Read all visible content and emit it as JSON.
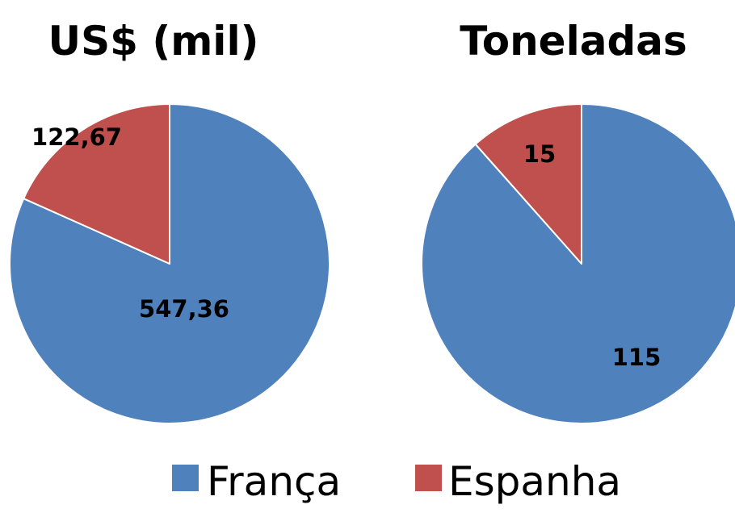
{
  "chart_data": [
    {
      "type": "pie",
      "title": "US$ (mil)",
      "categories": [
        "França",
        "Espanha"
      ],
      "values": [
        547.36,
        122.67
      ],
      "data_labels": [
        "547,36",
        "122,67"
      ],
      "colors": [
        "#4F81BD",
        "#C0504D"
      ],
      "start_angle": "12 o'clock",
      "direction": "clockwise"
    },
    {
      "type": "pie",
      "title": "Toneladas",
      "categories": [
        "França",
        "Espanha"
      ],
      "values": [
        115,
        15
      ],
      "data_labels": [
        "115",
        "15"
      ],
      "colors": [
        "#4F81BD",
        "#C0504D"
      ],
      "start_angle": "12 o'clock",
      "direction": "clockwise"
    }
  ],
  "legend": {
    "placement": "bottom",
    "items": [
      {
        "label": "França",
        "color": "#4F81BD"
      },
      {
        "label": "Espanha",
        "color": "#C0504D"
      }
    ]
  }
}
